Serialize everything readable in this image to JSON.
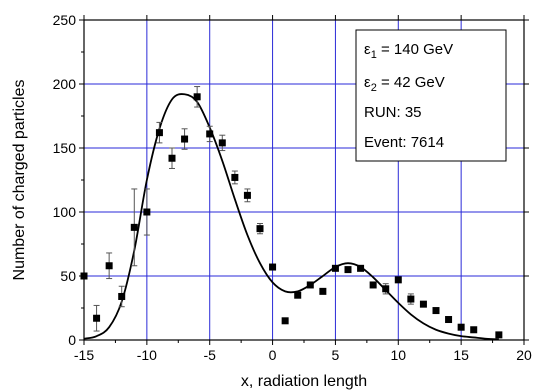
{
  "chart_data": {
    "type": "scatter",
    "xlabel": "x, radiation length",
    "ylabel": "Number of charged particles",
    "xlim": [
      -15,
      20
    ],
    "ylim": [
      0,
      250
    ],
    "xticks": [
      -15,
      -10,
      -5,
      0,
      5,
      10,
      15,
      20
    ],
    "yticks": [
      0,
      50,
      100,
      150,
      200,
      250
    ],
    "grid": true,
    "legend": {
      "placement": "top-right",
      "entries": [
        {
          "sym": "ε",
          "sub": "1",
          "text": " = 140 GeV"
        },
        {
          "sym": "ε",
          "sub": "2",
          "text": " = 42 GeV"
        },
        {
          "sym": "",
          "sub": "",
          "text": "RUN: 35"
        },
        {
          "sym": "",
          "sub": "",
          "text": "Event: 7614"
        }
      ]
    },
    "points": [
      {
        "x": -15,
        "y": 50,
        "err": 0
      },
      {
        "x": -14,
        "y": 17,
        "err": 10
      },
      {
        "x": -13,
        "y": 58,
        "err": 10
      },
      {
        "x": -12,
        "y": 34,
        "err": 8
      },
      {
        "x": -11,
        "y": 88,
        "err": 30
      },
      {
        "x": -10,
        "y": 100,
        "err": 18
      },
      {
        "x": -9,
        "y": 162,
        "err": 8
      },
      {
        "x": -8,
        "y": 142,
        "err": 8
      },
      {
        "x": -7,
        "y": 157,
        "err": 8
      },
      {
        "x": -6,
        "y": 190,
        "err": 8
      },
      {
        "x": -5,
        "y": 161,
        "err": 6
      },
      {
        "x": -4,
        "y": 154,
        "err": 6
      },
      {
        "x": -3,
        "y": 127,
        "err": 5
      },
      {
        "x": -2,
        "y": 113,
        "err": 5
      },
      {
        "x": -1,
        "y": 87,
        "err": 4
      },
      {
        "x": 0,
        "y": 57,
        "err": 0
      },
      {
        "x": 1,
        "y": 15,
        "err": 0
      },
      {
        "x": 2,
        "y": 35,
        "err": 0
      },
      {
        "x": 3,
        "y": 43,
        "err": 0
      },
      {
        "x": 4,
        "y": 38,
        "err": 0
      },
      {
        "x": 5,
        "y": 56,
        "err": 0
      },
      {
        "x": 6,
        "y": 55,
        "err": 0
      },
      {
        "x": 7,
        "y": 56,
        "err": 0
      },
      {
        "x": 8,
        "y": 43,
        "err": 0
      },
      {
        "x": 9,
        "y": 40,
        "err": 4
      },
      {
        "x": 10,
        "y": 47,
        "err": 0
      },
      {
        "x": 11,
        "y": 32,
        "err": 4
      },
      {
        "x": 12,
        "y": 28,
        "err": 0
      },
      {
        "x": 13,
        "y": 23,
        "err": 0
      },
      {
        "x": 14,
        "y": 16,
        "err": 0
      },
      {
        "x": 15,
        "y": 10,
        "err": 0
      },
      {
        "x": 16,
        "y": 8,
        "err": 0
      },
      {
        "x": 18,
        "y": 4,
        "err": 0
      }
    ],
    "curve": [
      [
        -15,
        1
      ],
      [
        -14,
        3
      ],
      [
        -13,
        10
      ],
      [
        -12,
        30
      ],
      [
        -11,
        70
      ],
      [
        -10,
        125
      ],
      [
        -9,
        165
      ],
      [
        -8,
        188
      ],
      [
        -7,
        192
      ],
      [
        -6,
        186
      ],
      [
        -5,
        166
      ],
      [
        -4,
        140
      ],
      [
        -3,
        110
      ],
      [
        -2,
        82
      ],
      [
        -1,
        60
      ],
      [
        0,
        45
      ],
      [
        1,
        38
      ],
      [
        2,
        38
      ],
      [
        3,
        43
      ],
      [
        4,
        50
      ],
      [
        5,
        57
      ],
      [
        6,
        60
      ],
      [
        7,
        57
      ],
      [
        8,
        49
      ],
      [
        9,
        39
      ],
      [
        10,
        29
      ],
      [
        11,
        20
      ],
      [
        12,
        13
      ],
      [
        13,
        8
      ],
      [
        14,
        5
      ],
      [
        15,
        3
      ],
      [
        16,
        2
      ],
      [
        17,
        1
      ],
      [
        18,
        0.5
      ]
    ]
  }
}
